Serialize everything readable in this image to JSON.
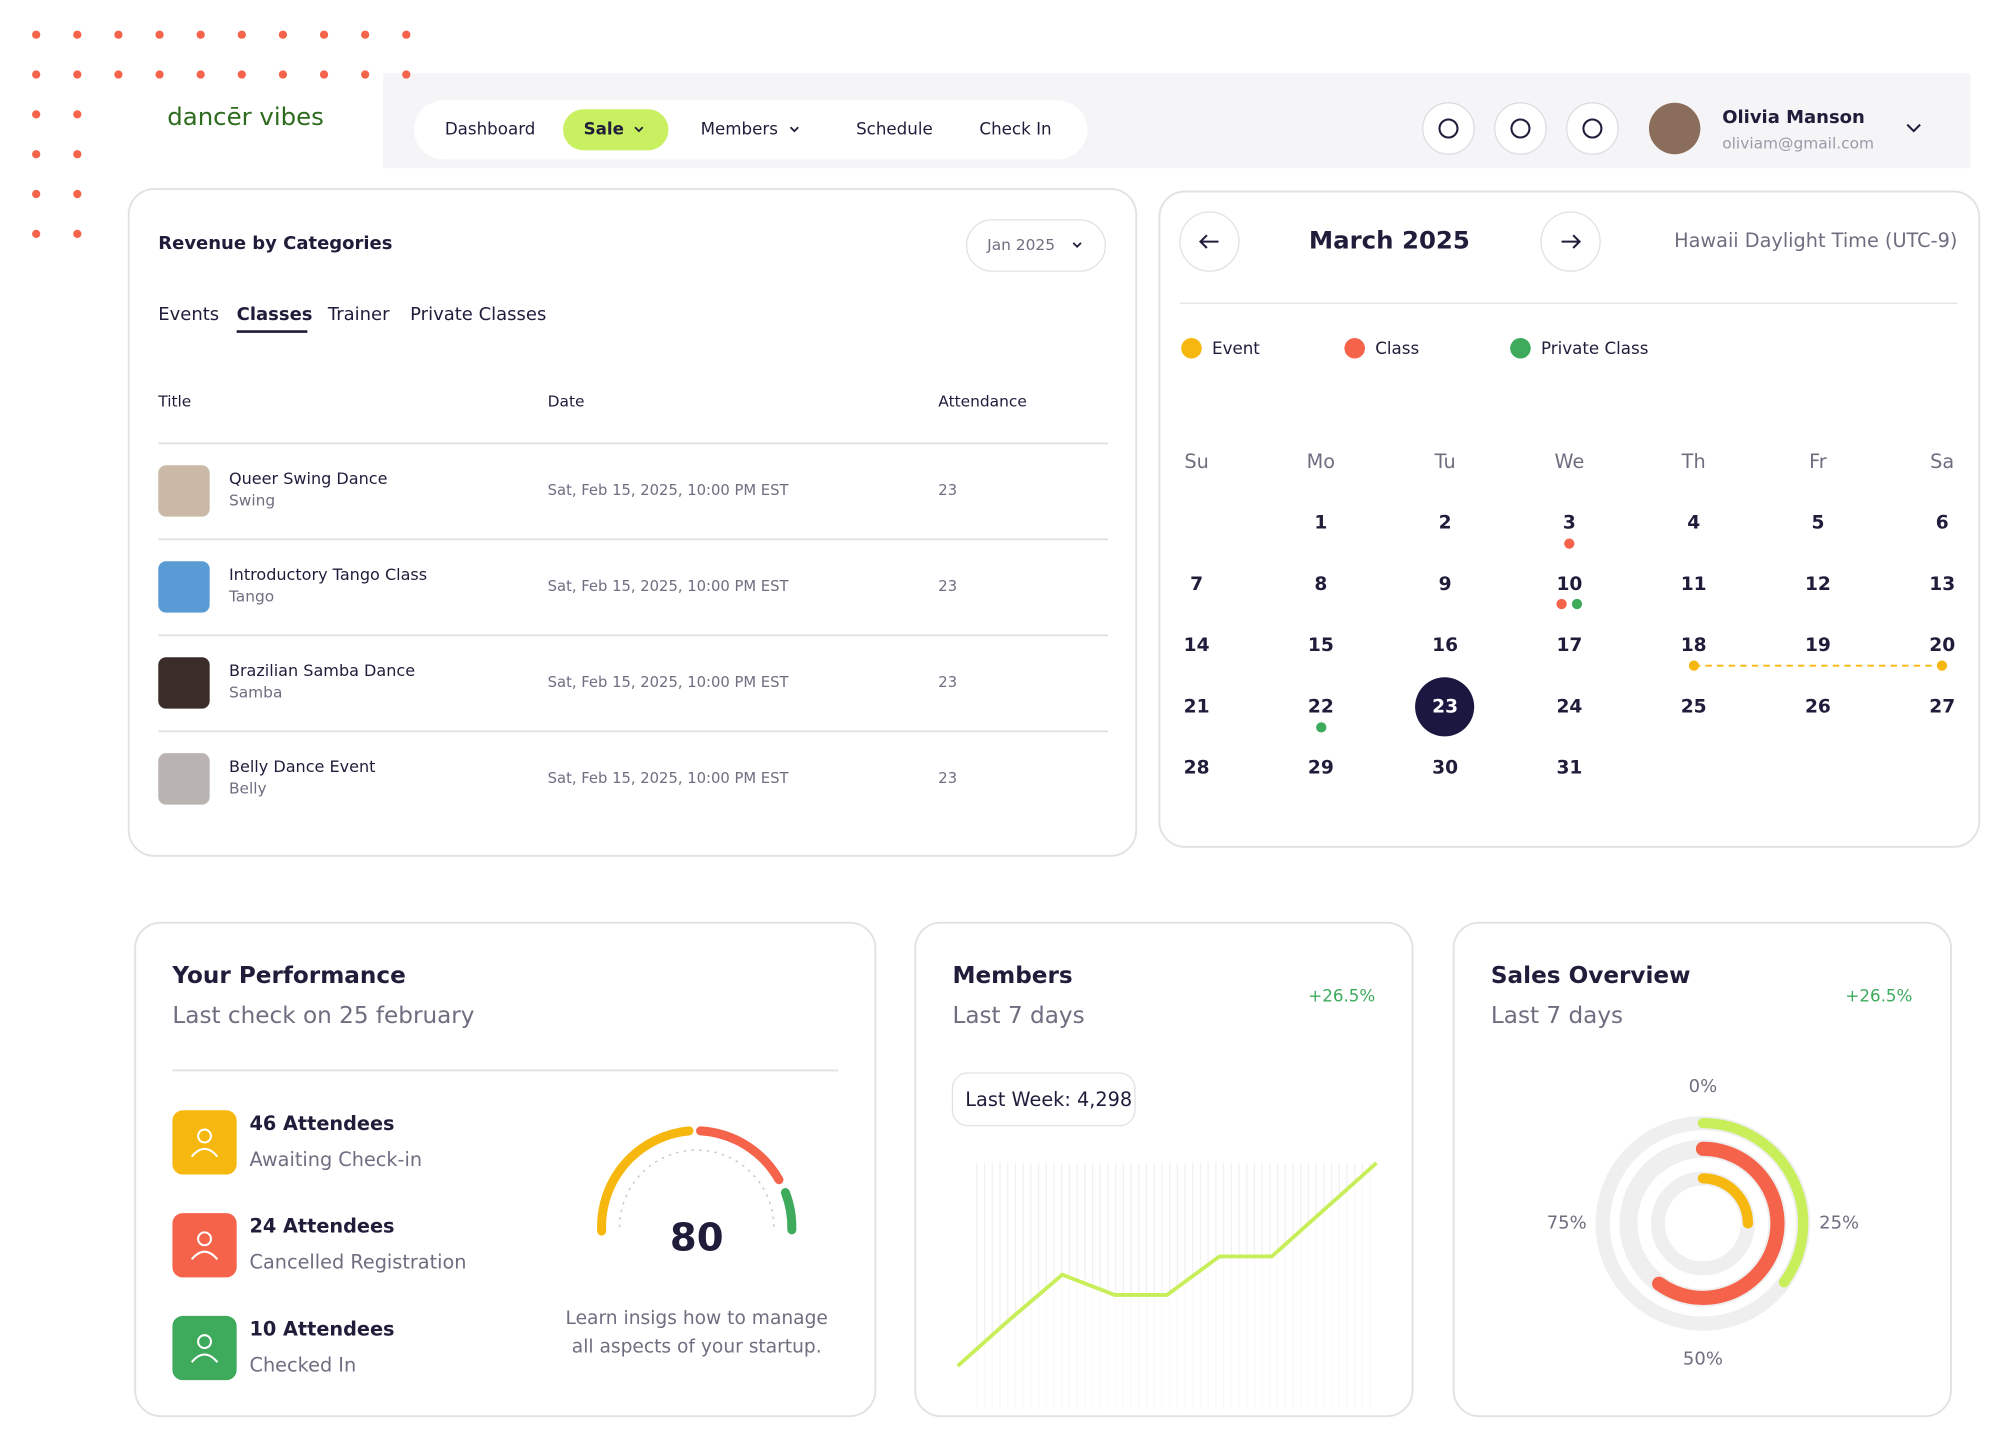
{
  "header": {
    "logo": "dancēr vibes",
    "nav": [
      "Dashboard",
      "Sale",
      "Members",
      "Schedule",
      "Check In"
    ],
    "user": {
      "name": "Olivia Manson",
      "email": "oliviam@gmail.com"
    }
  },
  "revenue": {
    "title": "Revenue by Categories",
    "period": "Jan 2025",
    "tabs": [
      "Events",
      "Classes",
      "Trainer",
      "Private Classes"
    ],
    "columns": [
      "Title",
      "Date",
      "Attendance"
    ],
    "rows": [
      {
        "title": "Queer Swing Dance",
        "category": "Swing",
        "date": "Sat, Feb 15, 2025, 10:00 PM EST",
        "attendance": 23
      },
      {
        "title": "Introductory Tango Class",
        "category": "Tango",
        "date": "Sat, Feb 15, 2025, 10:00 PM EST",
        "attendance": 23
      },
      {
        "title": "Brazilian Samba Dance",
        "category": "Samba",
        "date": "Sat, Feb 15, 2025, 10:00 PM EST",
        "attendance": 23
      },
      {
        "title": "Belly Dance Event",
        "category": "Belly",
        "date": "Sat, Feb 15, 2025, 10:00 PM EST",
        "attendance": 23
      }
    ]
  },
  "calendar": {
    "title": "March 2025",
    "timezone": "Hawaii Daylight Time (UTC-9)",
    "legend": [
      "Event",
      "Class",
      "Private Class"
    ],
    "weekdays": [
      "Su",
      "Mo",
      "Tu",
      "We",
      "Th",
      "Fr",
      "Sa"
    ],
    "days": [
      1,
      2,
      3,
      4,
      5,
      6,
      7,
      8,
      9,
      10,
      11,
      12,
      13,
      14,
      15,
      16,
      17,
      18,
      19,
      20,
      21,
      22,
      23,
      24,
      25,
      26,
      27,
      28,
      29,
      30,
      31
    ]
  },
  "performance": {
    "title": "Your Performance",
    "subtitle": "Last check on 25 february",
    "items": [
      {
        "title": "46 Attendees",
        "subtitle": "Awaiting Check-in"
      },
      {
        "title": "24 Attendees",
        "subtitle": "Cancelled Registration"
      },
      {
        "title": "10 Attendees",
        "subtitle": "Checked In"
      }
    ],
    "score": 80,
    "note": [
      "Learn insigs how to manage",
      "all aspects of your startup."
    ]
  },
  "members": {
    "title": "Members",
    "subtitle": "Last 7 days",
    "change": "+26.5%",
    "last_week_label": "Last Week:",
    "last_week": "4,298",
    "chart_data": {
      "type": "line",
      "color": "#c8ee5a",
      "values": [
        0,
        23,
        45,
        35,
        35,
        54,
        54,
        77,
        100
      ]
    }
  },
  "sales": {
    "title": "Sales Overview",
    "subtitle": "Last 7 days",
    "change": "+26.5%",
    "chart_data": {
      "type": "radial",
      "lim": [
        0,
        100
      ],
      "ticks": [
        {
          "value": 0,
          "label": "0%"
        },
        {
          "value": 25,
          "label": "25%"
        },
        {
          "value": 50,
          "label": "50%"
        },
        {
          "value": 75,
          "label": "75%"
        }
      ],
      "series": [
        {
          "color": "#c8ee5a",
          "values": [
            35
          ]
        },
        {
          "color": "#f4634a",
          "values": [
            60
          ]
        },
        {
          "color": "#f6b80f",
          "values": [
            25
          ]
        }
      ]
    }
  }
}
